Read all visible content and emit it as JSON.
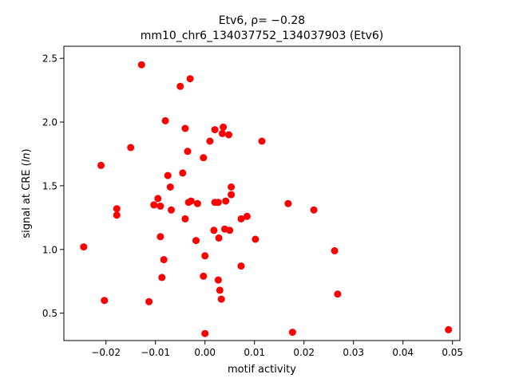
{
  "chart_data": {
    "type": "scatter",
    "title_line1": "Etv6, ρ= −0.28",
    "title_line2": "mm10_chr6_134037752_134037903 (Etv6)",
    "xlabel": "motif activity",
    "ylabel": "signal at CRE (ln)",
    "xlim": [
      -0.0285,
      0.0515
    ],
    "ylim": [
      0.285,
      2.595
    ],
    "xticks": [
      -0.02,
      -0.01,
      0.0,
      0.01,
      0.02,
      0.03,
      0.04,
      0.05
    ],
    "xtick_labels": [
      "−0.02",
      "−0.01",
      "0.00",
      "0.01",
      "0.02",
      "0.03",
      "0.04",
      "0.05"
    ],
    "yticks": [
      0.5,
      1.0,
      1.5,
      2.0,
      2.5
    ],
    "ytick_labels": [
      "0.5",
      "1.0",
      "1.5",
      "2.0",
      "2.5"
    ],
    "grid": false,
    "marker_color": "#ff0000",
    "points": [
      {
        "x": -0.0128,
        "y": 2.45
      },
      {
        "x": -0.003,
        "y": 2.34
      },
      {
        "x": -0.005,
        "y": 2.28
      },
      {
        "x": -0.008,
        "y": 2.01
      },
      {
        "x": -0.004,
        "y": 1.95
      },
      {
        "x": 0.002,
        "y": 1.94
      },
      {
        "x": 0.0037,
        "y": 1.96
      },
      {
        "x": 0.0035,
        "y": 1.91
      },
      {
        "x": 0.0048,
        "y": 1.9
      },
      {
        "x": 0.001,
        "y": 1.85
      },
      {
        "x": 0.0115,
        "y": 1.85
      },
      {
        "x": -0.015,
        "y": 1.8
      },
      {
        "x": -0.0035,
        "y": 1.77
      },
      {
        "x": -0.0003,
        "y": 1.72
      },
      {
        "x": -0.021,
        "y": 1.66
      },
      {
        "x": -0.0045,
        "y": 1.6
      },
      {
        "x": -0.0075,
        "y": 1.58
      },
      {
        "x": -0.007,
        "y": 1.49
      },
      {
        "x": 0.0053,
        "y": 1.49
      },
      {
        "x": 0.0053,
        "y": 1.43
      },
      {
        "x": -0.0095,
        "y": 1.4
      },
      {
        "x": -0.0033,
        "y": 1.37
      },
      {
        "x": -0.0028,
        "y": 1.38
      },
      {
        "x": -0.0015,
        "y": 1.36
      },
      {
        "x": 0.002,
        "y": 1.37
      },
      {
        "x": 0.0027,
        "y": 1.37
      },
      {
        "x": 0.0042,
        "y": 1.38
      },
      {
        "x": 0.0168,
        "y": 1.36
      },
      {
        "x": -0.0103,
        "y": 1.35
      },
      {
        "x": -0.009,
        "y": 1.34
      },
      {
        "x": -0.0068,
        "y": 1.31
      },
      {
        "x": -0.0178,
        "y": 1.32
      },
      {
        "x": -0.0178,
        "y": 1.27
      },
      {
        "x": 0.022,
        "y": 1.31
      },
      {
        "x": -0.004,
        "y": 1.24
      },
      {
        "x": 0.0085,
        "y": 1.26
      },
      {
        "x": 0.0073,
        "y": 1.24
      },
      {
        "x": 0.0018,
        "y": 1.15
      },
      {
        "x": 0.004,
        "y": 1.16
      },
      {
        "x": 0.005,
        "y": 1.15
      },
      {
        "x": -0.009,
        "y": 1.1
      },
      {
        "x": 0.0028,
        "y": 1.09
      },
      {
        "x": -0.0018,
        "y": 1.07
      },
      {
        "x": 0.0102,
        "y": 1.08
      },
      {
        "x": -0.0245,
        "y": 1.02
      },
      {
        "x": 0.0262,
        "y": 0.99
      },
      {
        "x": 0.0,
        "y": 0.95
      },
      {
        "x": -0.0083,
        "y": 0.92
      },
      {
        "x": 0.0073,
        "y": 0.87
      },
      {
        "x": -0.0003,
        "y": 0.79
      },
      {
        "x": -0.0087,
        "y": 0.78
      },
      {
        "x": 0.0027,
        "y": 0.76
      },
      {
        "x": 0.003,
        "y": 0.68
      },
      {
        "x": 0.0268,
        "y": 0.65
      },
      {
        "x": 0.0033,
        "y": 0.61
      },
      {
        "x": -0.0203,
        "y": 0.6
      },
      {
        "x": -0.0113,
        "y": 0.59
      },
      {
        "x": 0.0492,
        "y": 0.37
      },
      {
        "x": 0.0177,
        "y": 0.35
      },
      {
        "x": 0.0,
        "y": 0.34
      }
    ]
  }
}
